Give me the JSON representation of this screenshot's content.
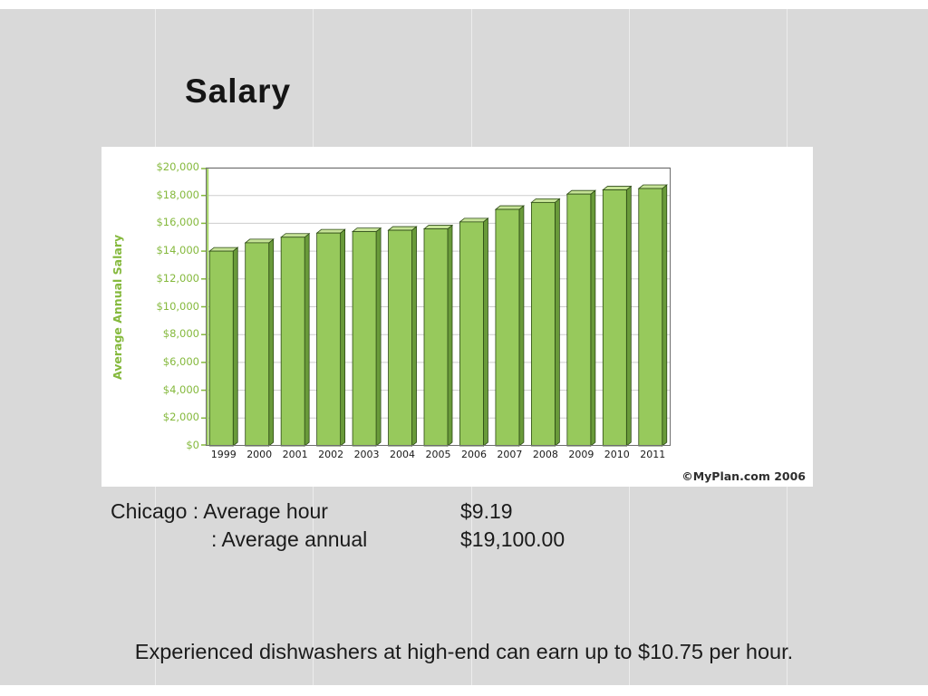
{
  "slide": {
    "title": "Salary",
    "stats": {
      "line1_label": "Chicago : Average hour",
      "line1_value": "$9.19",
      "line2_label": ": Average annual",
      "line2_value": "$19,100.00"
    },
    "footnote": "Experienced dishwashers at high-end can earn up to $10.75 per hour.",
    "watermark": "©MyPlan.com 2006"
  },
  "chart_data": {
    "type": "bar",
    "title": "",
    "xlabel": "",
    "ylabel": "Average Annual Salary",
    "categories": [
      "1999",
      "2000",
      "2001",
      "2002",
      "2003",
      "2004",
      "2005",
      "2006",
      "2007",
      "2008",
      "2009",
      "2010",
      "2011"
    ],
    "values": [
      14000,
      14600,
      15000,
      15300,
      15400,
      15500,
      15600,
      16100,
      17000,
      17500,
      18100,
      18400,
      18500
    ],
    "ylim": [
      0,
      20000
    ],
    "ytick_step": 2000,
    "ytick_labels": [
      "$0",
      "$2,000",
      "$4,000",
      "$6,000",
      "$8,000",
      "$10,000",
      "$12,000",
      "$14,000",
      "$16,000",
      "$18,000",
      "$20,000"
    ],
    "grid": true,
    "legend": "none",
    "axis_label_color": "#85b93d",
    "bar_color": "#97c95c",
    "bar_color_top": "#c5e296",
    "bar_color_side": "#699a3a",
    "bar_border_color": "#2d4a15",
    "gridline_color": "#cdcdcd",
    "plot_border_color": "#6e6e6e",
    "axis_accent_color": "#a8d56e"
  }
}
